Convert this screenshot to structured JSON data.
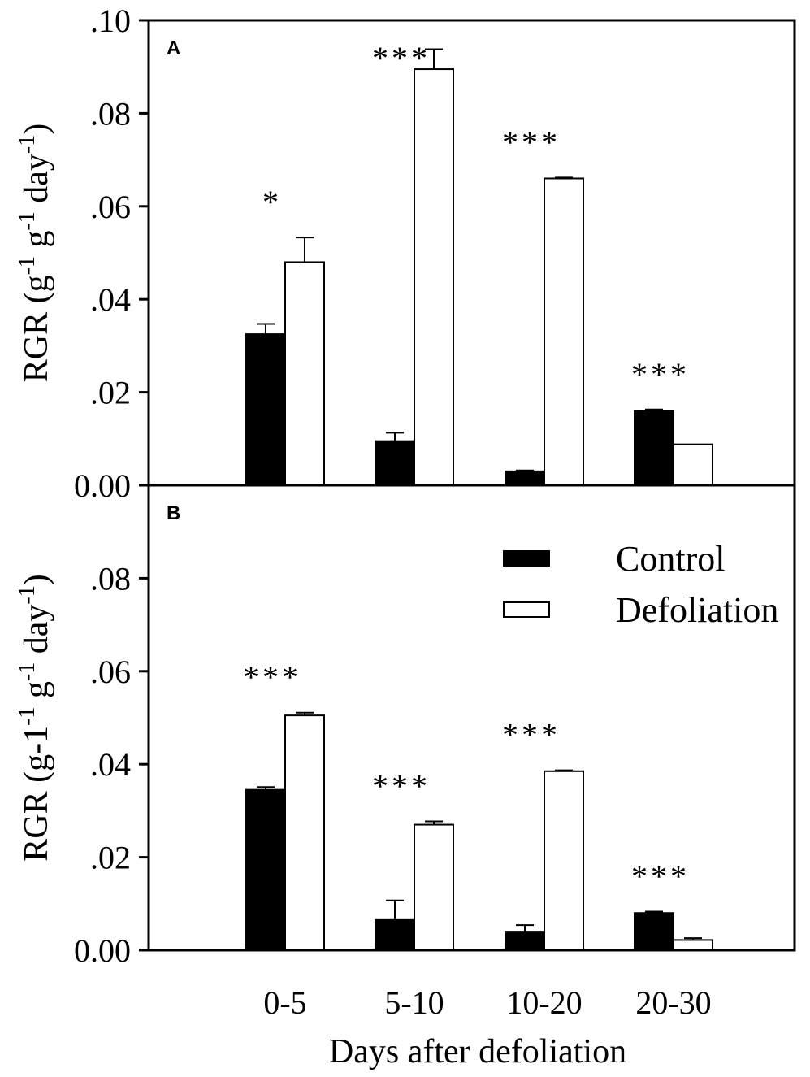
{
  "chart_data": [
    {
      "type": "bar",
      "panel": "A",
      "categories": [
        "0-5",
        "5-10",
        "10-20",
        "20-30"
      ],
      "series": [
        {
          "name": "Control",
          "color": "#000000",
          "values": [
            0.0325,
            0.0095,
            0.003,
            0.016
          ],
          "errors": [
            0.0022,
            0.0018,
            0.0002,
            0.0003
          ]
        },
        {
          "name": "Defoliation",
          "color": "#ffffff",
          "values": [
            0.048,
            0.0895,
            0.066,
            0.0088
          ],
          "errors": [
            0.0053,
            0.0043,
            0.0002,
            0.0
          ]
        }
      ],
      "significance": [
        "*",
        "***",
        "***",
        "***"
      ],
      "ylabel_main": "RGR (g",
      "ylabel_sup1": "-1",
      "ylabel_mid": " g",
      "ylabel_sup2": "-1",
      "ylabel_mid2": " day",
      "ylabel_sup3": "-1",
      "ylabel_end": ")",
      "ylim": [
        0,
        0.1
      ],
      "yticks": [
        0,
        0.02,
        0.04,
        0.06,
        0.08,
        0.1
      ],
      "ytick_labels": [
        "0.00",
        ".02",
        ".04",
        ".06",
        ".08",
        ".10"
      ]
    },
    {
      "type": "bar",
      "panel": "B",
      "categories": [
        "0-5",
        "5-10",
        "10-20",
        "20-30"
      ],
      "series": [
        {
          "name": "Control",
          "color": "#000000",
          "values": [
            0.0345,
            0.0065,
            0.004,
            0.008
          ],
          "errors": [
            0.0006,
            0.0042,
            0.0014,
            0.0003
          ]
        },
        {
          "name": "Defoliation",
          "color": "#ffffff",
          "values": [
            0.0505,
            0.027,
            0.0385,
            0.0022
          ],
          "errors": [
            0.0006,
            0.0007,
            0.0002,
            0.0004
          ]
        }
      ],
      "significance": [
        "***",
        "***",
        "***",
        "***"
      ],
      "ylabel_main": "RGR (g-1",
      "ylabel_sup1": "-1",
      "ylabel_mid": " g",
      "ylabel_sup2": "-1",
      "ylabel_mid2": " day",
      "ylabel_sup3": "-1",
      "ylabel_end": ")",
      "ylim": [
        0,
        0.1
      ],
      "yticks": [
        0,
        0.02,
        0.04,
        0.06,
        0.08
      ],
      "ytick_labels": [
        "0.00",
        ".02",
        ".04",
        ".06",
        ".08"
      ]
    }
  ],
  "xlabel": "Days after defoliation",
  "legend": {
    "position": "top-right of panel B",
    "entries": [
      "Control",
      "Defoliation"
    ]
  }
}
